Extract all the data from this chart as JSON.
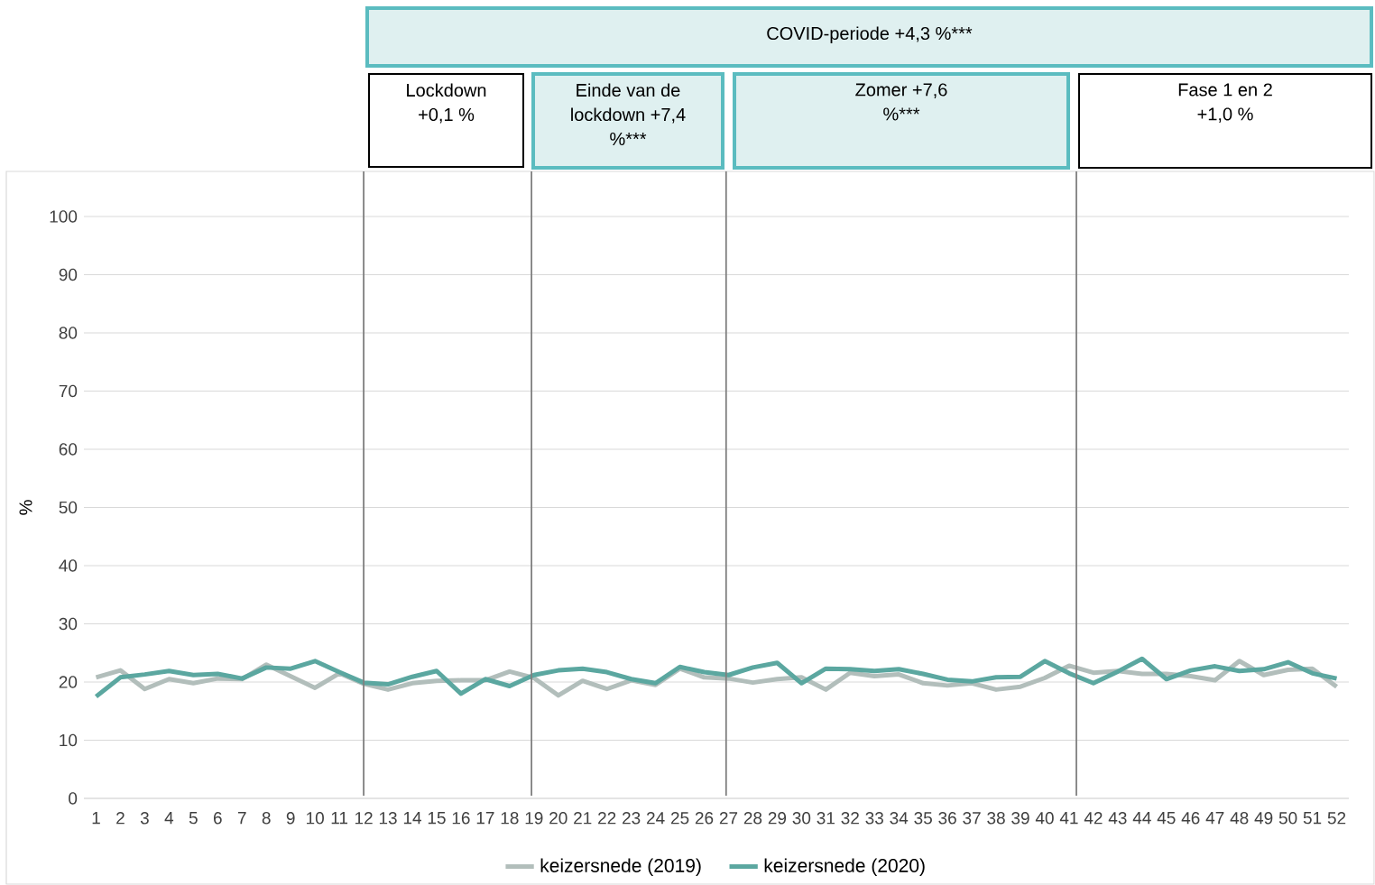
{
  "chart_data": {
    "type": "line",
    "ylabel": "%",
    "x": [
      1,
      2,
      3,
      4,
      5,
      6,
      7,
      8,
      9,
      10,
      11,
      12,
      13,
      14,
      15,
      16,
      17,
      18,
      19,
      20,
      21,
      22,
      23,
      24,
      25,
      26,
      27,
      28,
      29,
      30,
      31,
      32,
      33,
      34,
      35,
      36,
      37,
      38,
      39,
      40,
      41,
      42,
      43,
      44,
      45,
      46,
      47,
      48,
      49,
      50,
      51,
      52
    ],
    "xlim": [
      0.5,
      52.5
    ],
    "xticks": [
      1,
      2,
      3,
      4,
      5,
      6,
      7,
      8,
      9,
      10,
      11,
      12,
      13,
      14,
      15,
      16,
      17,
      18,
      19,
      20,
      21,
      22,
      23,
      24,
      25,
      26,
      27,
      28,
      29,
      30,
      31,
      32,
      33,
      34,
      35,
      36,
      37,
      38,
      39,
      40,
      41,
      42,
      43,
      44,
      45,
      46,
      47,
      48,
      49,
      50,
      51,
      52
    ],
    "ylim": [
      0,
      100
    ],
    "yticks": [
      0,
      10,
      20,
      30,
      40,
      50,
      60,
      70,
      80,
      90,
      100
    ],
    "grid": "y",
    "legend": "bottom",
    "marker": "none",
    "line_style": "solid",
    "series": [
      {
        "name": "keizersnede (2019)",
        "color": "#b2bebb",
        "values": [
          20.8,
          22,
          18.8,
          20.5,
          19.8,
          20.6,
          20.5,
          23,
          21,
          19,
          21.5,
          19.7,
          18.7,
          19.8,
          20.2,
          20.3,
          20.3,
          21.8,
          20.7,
          17.7,
          20.2,
          18.8,
          20.3,
          19.5,
          22.3,
          20.8,
          20.6,
          19.9,
          20.5,
          20.8,
          18.7,
          21.6,
          21,
          21.3,
          19.8,
          19.4,
          19.8,
          18.7,
          19.2,
          20.7,
          22.8,
          21.6,
          21.9,
          21.4,
          21.4,
          21,
          20.3,
          23.6,
          21.2,
          22.1,
          22.3,
          19.2
        ]
      },
      {
        "name": "keizersnede (2020)",
        "color": "#5ba7a0",
        "values": [
          17.5,
          20.8,
          21.3,
          21.9,
          21.2,
          21.4,
          20.6,
          22.5,
          22.3,
          23.6,
          21.7,
          19.9,
          19.6,
          20.9,
          21.9,
          18,
          20.5,
          19.3,
          21.2,
          22,
          22.3,
          21.7,
          20.5,
          19.8,
          22.6,
          21.7,
          21.2,
          22.5,
          23.3,
          19.8,
          22.3,
          22.2,
          21.9,
          22.2,
          21.4,
          20.4,
          20.1,
          20.8,
          20.9,
          23.6,
          21.5,
          19.8,
          21.8,
          24,
          20.5,
          22,
          22.7,
          21.9,
          22.2,
          23.4,
          21.5,
          20.6
        ]
      }
    ],
    "ref_lines": [
      {
        "axis": "x",
        "value": 12,
        "color": "#7f7f7f"
      },
      {
        "axis": "x",
        "value": 18.9,
        "color": "#7f7f7f"
      },
      {
        "axis": "x",
        "value": 26.9,
        "color": "#7f7f7f"
      },
      {
        "axis": "x",
        "value": 41.3,
        "color": "#7f7f7f"
      }
    ],
    "annotations": [
      "COVID-periode +4,3 %***",
      "Lockdown +0,1 %",
      "Einde van de lockdown +7,4 %***",
      "Zomer +7,6 %***",
      "Fase 1 en 2 +1,0 %"
    ]
  }
}
